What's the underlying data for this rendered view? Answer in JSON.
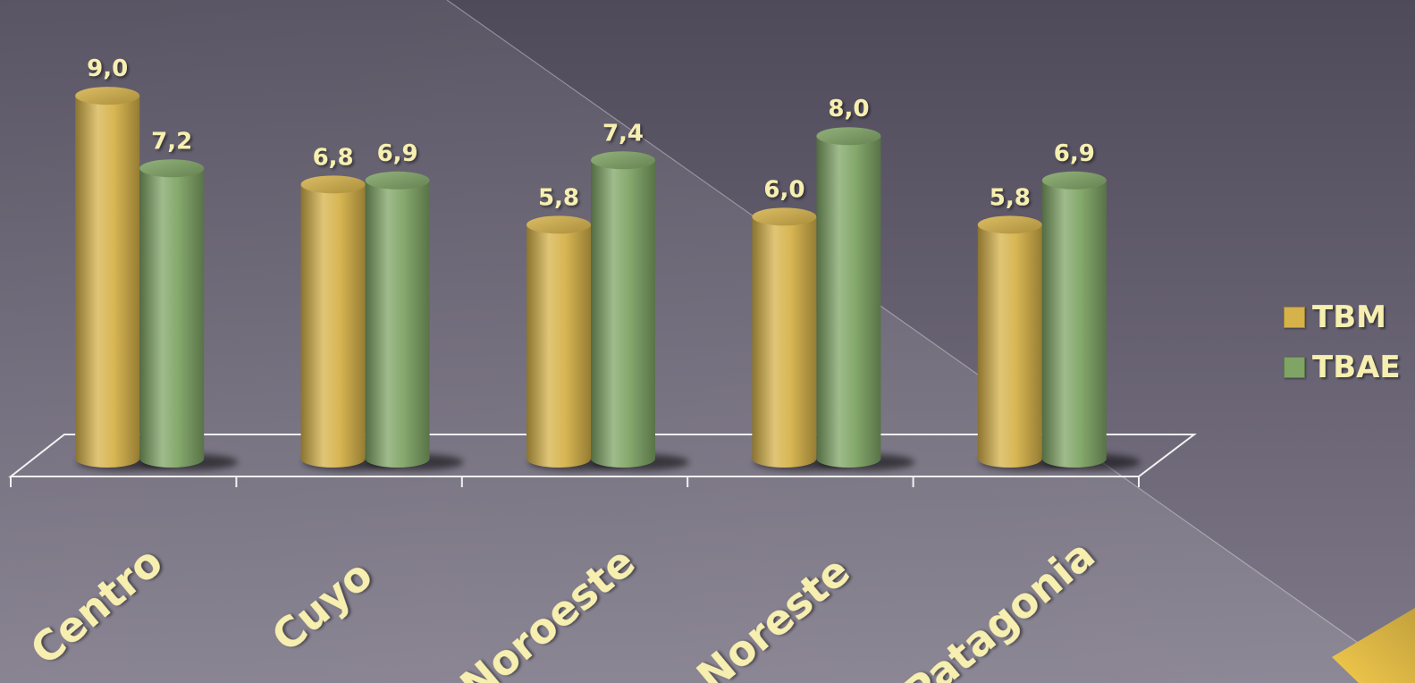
{
  "colors": {
    "background_top": "#4f4a5a",
    "background_bottom": "#7e7888",
    "tbm": "#d6b24a",
    "tbae": "#7fa465",
    "label": "#f6efb0",
    "floor_line": "#f2f2f2",
    "accent_corner": "#f2c94c"
  },
  "chart_data": {
    "type": "bar",
    "style": "3d-cylinder",
    "categories": [
      "Centro",
      "Cuyo",
      "Noroeste",
      "Noreste",
      "Patagonia"
    ],
    "series": [
      {
        "name": "TBM",
        "values": [
          9.0,
          6.8,
          5.8,
          6.0,
          5.8
        ],
        "labels": [
          "9,0",
          "6,8",
          "5,8",
          "6,0",
          "5,8"
        ]
      },
      {
        "name": "TBAE",
        "values": [
          7.2,
          6.9,
          7.4,
          8.0,
          6.9
        ],
        "labels": [
          "7,2",
          "6,9",
          "7,4",
          "8,0",
          "6,9"
        ]
      }
    ],
    "title": "",
    "xlabel": "",
    "ylabel": "",
    "ylim": [
      0,
      10
    ],
    "grid": false,
    "legend_position": "right",
    "data_labels": true
  },
  "legend": {
    "items": [
      {
        "label": "TBM"
      },
      {
        "label": "TBAE"
      }
    ]
  }
}
